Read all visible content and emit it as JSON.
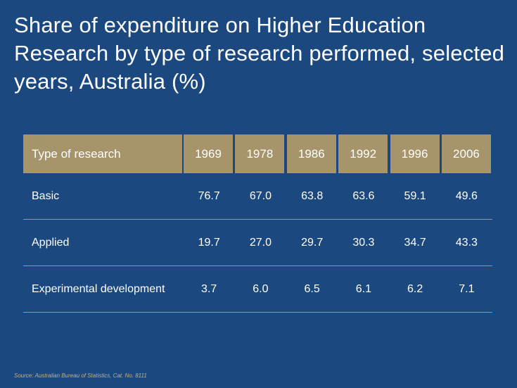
{
  "title": "Share of expenditure on Higher Education Research by type of research performed, selected years, Australia (%)",
  "table": {
    "headers": [
      "Type of research",
      "1969",
      "1978",
      "1986",
      "1992",
      "1996",
      "2006"
    ],
    "rows": [
      {
        "label": "Basic",
        "values": [
          "76.7",
          "67.0",
          "63.8",
          "63.6",
          "59.1",
          "49.6"
        ]
      },
      {
        "label": "Applied",
        "values": [
          "19.7",
          "27.0",
          "29.7",
          "30.3",
          "34.7",
          "43.3"
        ]
      },
      {
        "label": "Experimental development",
        "values": [
          "3.7",
          "6.0",
          "6.5",
          "6.1",
          "6.2",
          "7.1"
        ]
      }
    ]
  },
  "source": "Source: Australian Bureau of Statistics, Cat. No. 8111",
  "colors": {
    "background": "#1c4880",
    "header": "#a6946a",
    "text": "#ffffff"
  }
}
